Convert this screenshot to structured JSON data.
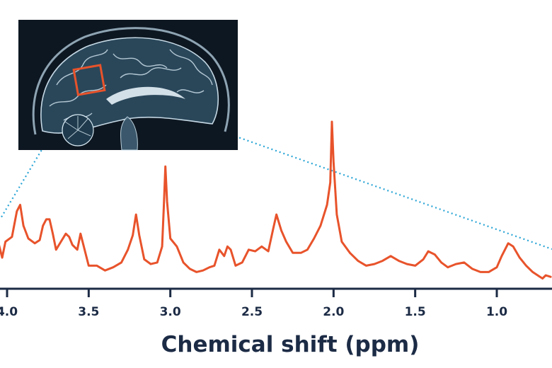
{
  "chart_data": {
    "type": "line",
    "title": "",
    "xlabel": "Chemical shift (ppm)",
    "ylabel": "",
    "x_reversed": true,
    "xlim": [
      4.07,
      0.67
    ],
    "ylim": [
      0,
      1.05
    ],
    "grid": false,
    "legend": "none",
    "x_ticks": [
      {
        "value": 4.0,
        "label": "4.0"
      },
      {
        "value": 3.5,
        "label": "3.5"
      },
      {
        "value": 3.0,
        "label": "3.0"
      },
      {
        "value": 2.5,
        "label": "2.5"
      },
      {
        "value": 2.0,
        "label": "2.0"
      },
      {
        "value": 1.5,
        "label": "1.5"
      },
      {
        "value": 1.0,
        "label": "1.0"
      }
    ],
    "series": [
      {
        "color": "#e8532b",
        "points": [
          [
            4.07,
            0.18
          ],
          [
            4.05,
            0.23
          ],
          [
            4.03,
            0.15
          ],
          [
            4.01,
            0.25
          ],
          [
            3.97,
            0.28
          ],
          [
            3.94,
            0.44
          ],
          [
            3.92,
            0.48
          ],
          [
            3.9,
            0.35
          ],
          [
            3.87,
            0.27
          ],
          [
            3.83,
            0.24
          ],
          [
            3.8,
            0.26
          ],
          [
            3.78,
            0.35
          ],
          [
            3.76,
            0.39
          ],
          [
            3.74,
            0.39
          ],
          [
            3.72,
            0.3
          ],
          [
            3.7,
            0.2
          ],
          [
            3.67,
            0.25
          ],
          [
            3.64,
            0.3
          ],
          [
            3.62,
            0.28
          ],
          [
            3.6,
            0.23
          ],
          [
            3.57,
            0.2
          ],
          [
            3.55,
            0.3
          ],
          [
            3.53,
            0.22
          ],
          [
            3.5,
            0.1
          ],
          [
            3.45,
            0.1
          ],
          [
            3.4,
            0.07
          ],
          [
            3.35,
            0.09
          ],
          [
            3.3,
            0.12
          ],
          [
            3.26,
            0.2
          ],
          [
            3.23,
            0.29
          ],
          [
            3.21,
            0.42
          ],
          [
            3.19,
            0.29
          ],
          [
            3.16,
            0.14
          ],
          [
            3.12,
            0.11
          ],
          [
            3.08,
            0.12
          ],
          [
            3.05,
            0.22
          ],
          [
            3.04,
            0.46
          ],
          [
            3.03,
            0.72
          ],
          [
            3.02,
            0.5
          ],
          [
            3.0,
            0.27
          ],
          [
            2.96,
            0.22
          ],
          [
            2.92,
            0.12
          ],
          [
            2.88,
            0.08
          ],
          [
            2.84,
            0.06
          ],
          [
            2.8,
            0.07
          ],
          [
            2.76,
            0.09
          ],
          [
            2.73,
            0.1
          ],
          [
            2.7,
            0.2
          ],
          [
            2.67,
            0.16
          ],
          [
            2.65,
            0.22
          ],
          [
            2.63,
            0.2
          ],
          [
            2.6,
            0.1
          ],
          [
            2.56,
            0.12
          ],
          [
            2.52,
            0.2
          ],
          [
            2.48,
            0.19
          ],
          [
            2.44,
            0.22
          ],
          [
            2.4,
            0.19
          ],
          [
            2.37,
            0.33
          ],
          [
            2.35,
            0.42
          ],
          [
            2.32,
            0.32
          ],
          [
            2.29,
            0.25
          ],
          [
            2.25,
            0.18
          ],
          [
            2.2,
            0.18
          ],
          [
            2.16,
            0.2
          ],
          [
            2.12,
            0.27
          ],
          [
            2.08,
            0.35
          ],
          [
            2.04,
            0.48
          ],
          [
            2.02,
            0.62
          ],
          [
            2.01,
            1.0
          ],
          [
            2.0,
            0.75
          ],
          [
            1.98,
            0.42
          ],
          [
            1.95,
            0.25
          ],
          [
            1.9,
            0.18
          ],
          [
            1.85,
            0.13
          ],
          [
            1.8,
            0.1
          ],
          [
            1.75,
            0.11
          ],
          [
            1.7,
            0.13
          ],
          [
            1.65,
            0.16
          ],
          [
            1.6,
            0.13
          ],
          [
            1.55,
            0.11
          ],
          [
            1.5,
            0.1
          ],
          [
            1.45,
            0.14
          ],
          [
            1.42,
            0.19
          ],
          [
            1.38,
            0.17
          ],
          [
            1.34,
            0.12
          ],
          [
            1.3,
            0.09
          ],
          [
            1.25,
            0.11
          ],
          [
            1.2,
            0.12
          ],
          [
            1.15,
            0.08
          ],
          [
            1.1,
            0.06
          ],
          [
            1.05,
            0.06
          ],
          [
            1.0,
            0.09
          ],
          [
            0.97,
            0.16
          ],
          [
            0.93,
            0.24
          ],
          [
            0.9,
            0.22
          ],
          [
            0.86,
            0.15
          ],
          [
            0.82,
            0.1
          ],
          [
            0.78,
            0.06
          ],
          [
            0.75,
            0.04
          ],
          [
            0.72,
            0.02
          ],
          [
            0.7,
            0.04
          ],
          [
            0.67,
            0.03
          ]
        ]
      }
    ]
  },
  "inset": {
    "description_icon": "brain-mri-sagittal-image",
    "roi_color": "#e8532b",
    "connector_color": "#2aa5d6"
  },
  "colors": {
    "axis": "#1c2b45",
    "spectrum": "#e8532b",
    "mri_background": "#0d1722"
  }
}
